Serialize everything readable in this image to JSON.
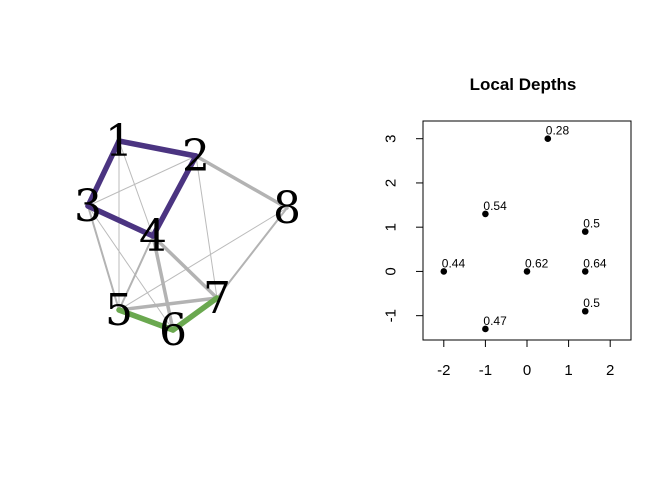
{
  "chart_data": [
    {
      "type": "network",
      "nodes": [
        {
          "id": "1",
          "label": "1"
        },
        {
          "id": "2",
          "label": "2"
        },
        {
          "id": "3",
          "label": "3"
        },
        {
          "id": "4",
          "label": "4"
        },
        {
          "id": "5",
          "label": "5"
        },
        {
          "id": "6",
          "label": "6"
        },
        {
          "id": "7",
          "label": "7"
        },
        {
          "id": "8",
          "label": "8"
        }
      ],
      "edges": [
        {
          "from": "1",
          "to": "3",
          "group": "thin"
        },
        {
          "from": "1",
          "to": "4",
          "group": "thin"
        },
        {
          "from": "1",
          "to": "5",
          "group": "thin"
        },
        {
          "from": "3",
          "to": "2",
          "group": "thin"
        },
        {
          "from": "3",
          "to": "6",
          "group": "thin"
        },
        {
          "from": "2",
          "to": "7",
          "group": "thin"
        },
        {
          "from": "8",
          "to": "5",
          "group": "thin"
        },
        {
          "from": "3",
          "to": "5",
          "group": "medium"
        },
        {
          "from": "4",
          "to": "5",
          "group": "medium"
        },
        {
          "from": "8",
          "to": "7",
          "group": "medium"
        },
        {
          "from": "2",
          "to": "8",
          "group": "thick"
        },
        {
          "from": "4",
          "to": "6",
          "group": "thick"
        },
        {
          "from": "4",
          "to": "7",
          "group": "thick"
        },
        {
          "from": "5",
          "to": "7",
          "group": "thick"
        },
        {
          "from": "1",
          "to": "2",
          "group": "community-1"
        },
        {
          "from": "2",
          "to": "4",
          "group": "community-1"
        },
        {
          "from": "4",
          "to": "3",
          "group": "community-1"
        },
        {
          "from": "3",
          "to": "1",
          "group": "community-1"
        },
        {
          "from": "5",
          "to": "6",
          "group": "community-2"
        },
        {
          "from": "6",
          "to": "7",
          "group": "community-2"
        }
      ],
      "edge_colors": {
        "thin": "#bbbbbb",
        "medium": "#b3b3b3",
        "thick": "#b3b3b3",
        "community-1": "#4b3481",
        "community-2": "#6aa84f"
      }
    },
    {
      "type": "scatter",
      "title": "Local Depths",
      "xlabel": "",
      "ylabel": "",
      "xlim": [
        -2.5,
        2.5
      ],
      "ylim": [
        -1.55,
        3.4
      ],
      "xticks": [
        -2,
        -1,
        0,
        1,
        2
      ],
      "yticks": [
        -1,
        0,
        1,
        2,
        3
      ],
      "points": [
        {
          "x": 0.5,
          "y": 3.0,
          "label": "0.28"
        },
        {
          "x": -1.0,
          "y": 1.3,
          "label": "0.54"
        },
        {
          "x": 1.4,
          "y": 0.9,
          "label": "0.5"
        },
        {
          "x": -2.0,
          "y": 0.0,
          "label": "0.44"
        },
        {
          "x": 0.0,
          "y": 0.0,
          "label": "0.62"
        },
        {
          "x": 1.4,
          "y": 0.0,
          "label": "0.64"
        },
        {
          "x": 1.4,
          "y": -0.9,
          "label": "0.5"
        },
        {
          "x": -1.0,
          "y": -1.3,
          "label": "0.47"
        }
      ],
      "grid": false,
      "point_color": "#000000"
    }
  ]
}
